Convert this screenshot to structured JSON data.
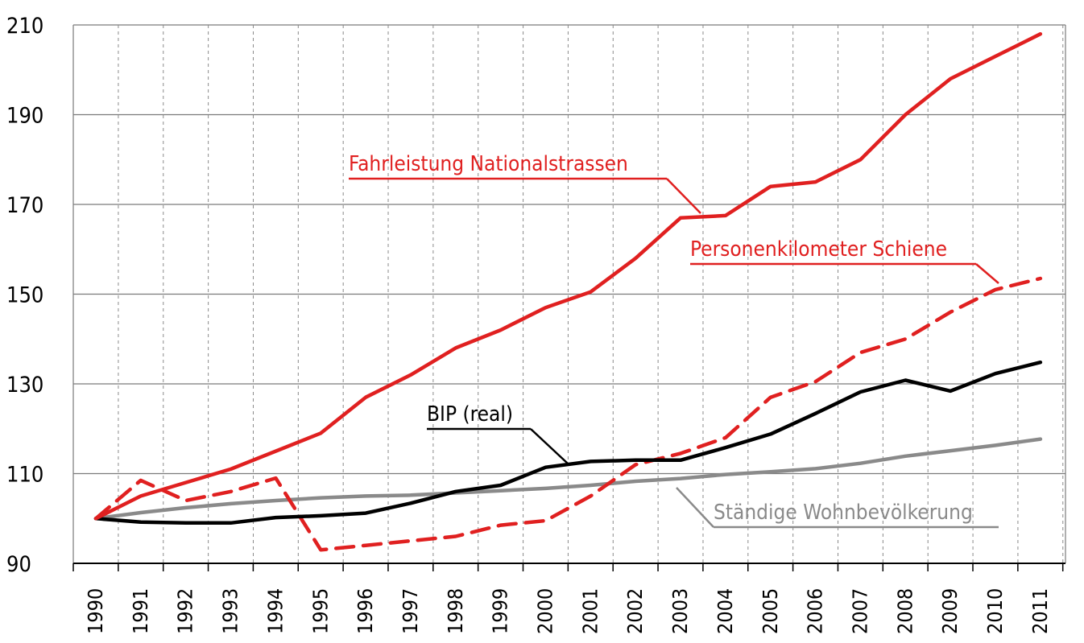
{
  "chart_data": {
    "type": "line",
    "title": "",
    "xlabel": "",
    "ylabel": "",
    "ylim": [
      90,
      210
    ],
    "yticks": [
      90,
      110,
      130,
      150,
      170,
      190,
      210
    ],
    "grid": true,
    "x": [
      "1990",
      "1991",
      "1992",
      "1993",
      "1994",
      "1995",
      "1996",
      "1997",
      "1998",
      "1999",
      "2000",
      "2001",
      "2002",
      "2003",
      "2004",
      "2005",
      "2006",
      "2007",
      "2008",
      "2009",
      "2010",
      "2011"
    ],
    "series": [
      {
        "name": "Fahrleistung Nationalstrassen",
        "color": "#e02020",
        "style": "solid",
        "values": [
          100,
          105,
          108,
          111,
          115,
          119,
          127,
          132,
          138,
          142,
          147,
          150.5,
          158,
          167,
          167.5,
          174,
          175,
          180,
          190,
          198,
          203,
          208
        ]
      },
      {
        "name": "Personenkilometer Schiene",
        "color": "#e02020",
        "style": "dashed",
        "values": [
          100,
          108.5,
          104,
          106,
          109,
          93,
          94,
          95,
          96,
          98.5,
          99.5,
          105,
          112,
          114.5,
          118,
          127,
          130.5,
          137,
          140,
          146,
          151,
          153.5
        ]
      },
      {
        "name": "BIP (real)",
        "color": "#000000",
        "style": "solid",
        "values": [
          100,
          99.2,
          99,
          99,
          100.2,
          100.6,
          101.2,
          103.4,
          106,
          107.4,
          111.4,
          112.7,
          113,
          113,
          115.8,
          118.8,
          123.4,
          128.2,
          130.8,
          128.4,
          132.3,
          134.8
        ]
      },
      {
        "name": "Ständige Wohnbevölkerung",
        "color": "#8a8a8a",
        "style": "solid",
        "values": [
          100,
          101.3,
          102.4,
          103.3,
          104,
          104.6,
          105,
          105.2,
          105.7,
          106.2,
          106.7,
          107.4,
          108.3,
          108.9,
          109.8,
          110.4,
          111.1,
          112.3,
          113.9,
          115.1,
          116.3,
          117.7
        ]
      }
    ]
  }
}
